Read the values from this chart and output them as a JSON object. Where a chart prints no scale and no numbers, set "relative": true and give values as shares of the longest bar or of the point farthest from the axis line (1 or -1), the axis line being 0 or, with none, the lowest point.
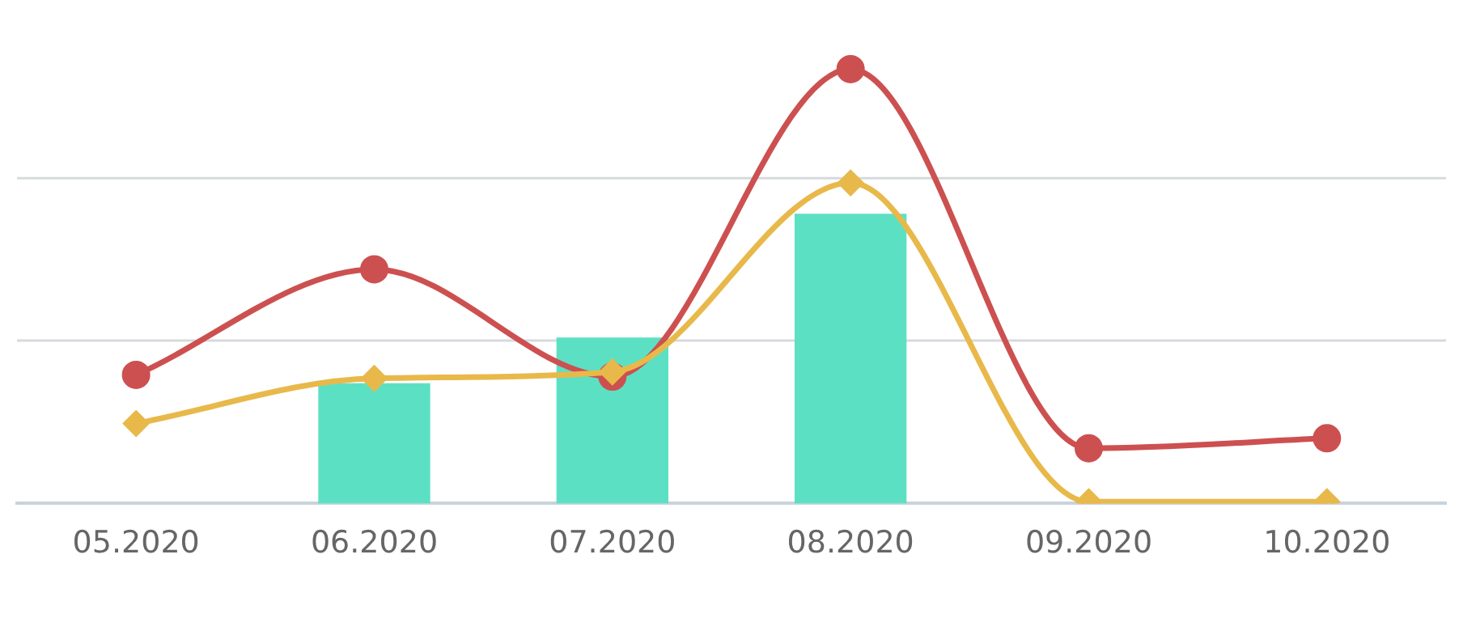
{
  "chart_data": {
    "type": "bar",
    "relative": true,
    "categories": [
      "05.2020",
      "06.2020",
      "07.2020",
      "08.2020",
      "09.2020",
      "10.2020"
    ],
    "series": [
      {
        "color": "#5ce0c4",
        "values": [
          null,
          0.277,
          0.382,
          0.667,
          null,
          null
        ]
      },
      {
        "type": "line",
        "color": "#cd5050",
        "marker": "circle",
        "values": [
          0.296,
          0.539,
          0.292,
          1,
          0.127,
          0.15
        ]
      },
      {
        "type": "line",
        "color": "#e8b94a",
        "marker": "diamond",
        "values": [
          0.184,
          0.288,
          0.303,
          0.738,
          0.004,
          0.004
        ]
      }
    ],
    "ref_lines": [
      {
        "axis": "y",
        "value": 0.375,
        "color": "#d6dadd"
      },
      {
        "axis": "y",
        "value": 0.749,
        "color": "#d6dadd"
      }
    ],
    "legend": false
  }
}
